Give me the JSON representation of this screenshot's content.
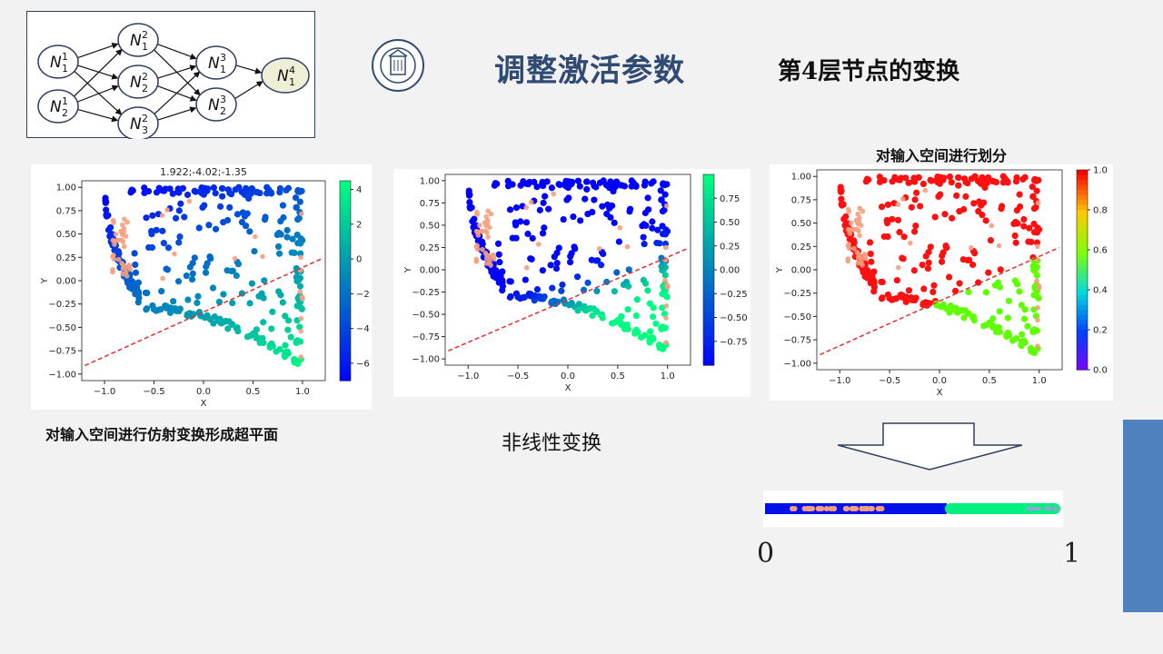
{
  "header": {
    "title": "调整激活参数",
    "subtitle": "第4层节点的变换"
  },
  "network": {
    "nodes": [
      {
        "label": "N",
        "sub": "1",
        "sup": "1"
      },
      {
        "label": "N",
        "sub": "2",
        "sup": "1"
      },
      {
        "label": "N",
        "sub": "1",
        "sup": "2"
      },
      {
        "label": "N",
        "sub": "2",
        "sup": "2"
      },
      {
        "label": "N",
        "sub": "3",
        "sup": "2"
      },
      {
        "label": "N",
        "sub": "1",
        "sup": "3"
      },
      {
        "label": "N",
        "sub": "2",
        "sup": "3"
      },
      {
        "label": "N",
        "sub": "1",
        "sup": "4"
      }
    ],
    "highlight_color": "#efefd8"
  },
  "plots": [
    {
      "title": "1.922;-4.02;-1.35",
      "xlabel": "X",
      "ylabel": "Y",
      "xticks": [
        "−1.0",
        "−0.5",
        "0.0",
        "0.5",
        "1.0"
      ],
      "yticks": [
        "1.00",
        "0.75",
        "0.50",
        "0.25",
        "0.00",
        "−0.25",
        "−0.50",
        "−0.75",
        "−1.00"
      ],
      "cbar_ticks": [
        "4",
        "2",
        "0",
        "−2",
        "−4",
        "−6"
      ],
      "cbar_range": [
        -7,
        4.5
      ],
      "colormap": "winter",
      "caption": "对输入空间进行仿射变换形成超平面"
    },
    {
      "title": "",
      "xlabel": "X",
      "ylabel": "Y",
      "xticks": [
        "−1.0",
        "−0.5",
        "0.0",
        "0.5",
        "1.0"
      ],
      "yticks": [
        "1.00",
        "0.75",
        "0.50",
        "0.25",
        "0.00",
        "−0.25",
        "−0.50",
        "−0.75",
        "−1.00"
      ],
      "cbar_ticks": [
        "0.75",
        "0.50",
        "0.25",
        "0.00",
        "−0.25",
        "−0.50",
        "−0.75"
      ],
      "cbar_range": [
        -1,
        1
      ],
      "colormap": "winter",
      "caption": "非线性变换"
    },
    {
      "title": "对输入空间进行划分",
      "xlabel": "X",
      "ylabel": "Y",
      "xticks": [
        "−1.0",
        "−0.5",
        "0.0",
        "0.5",
        "1.0"
      ],
      "yticks": [
        "1.00",
        "0.75",
        "0.50",
        "0.25",
        "0.00",
        "−0.25",
        "−0.50",
        "−0.75",
        "−1.00"
      ],
      "cbar_ticks": [
        "1.0",
        "0.8",
        "0.6",
        "0.4",
        "0.2",
        "0.0"
      ],
      "cbar_range": [
        0,
        1
      ],
      "colormap": "rainbow",
      "caption": ""
    }
  ],
  "number_line": {
    "left_label": "0",
    "right_label": "1"
  },
  "colors": {
    "title": "#2f4a73",
    "accent_bar": "#4f81bd",
    "boundary": "#e03030",
    "blue": "#0010e8",
    "green": "#00f080",
    "red": "#ff1010",
    "lime": "#60ff00",
    "salmon": "#f4a080"
  }
}
